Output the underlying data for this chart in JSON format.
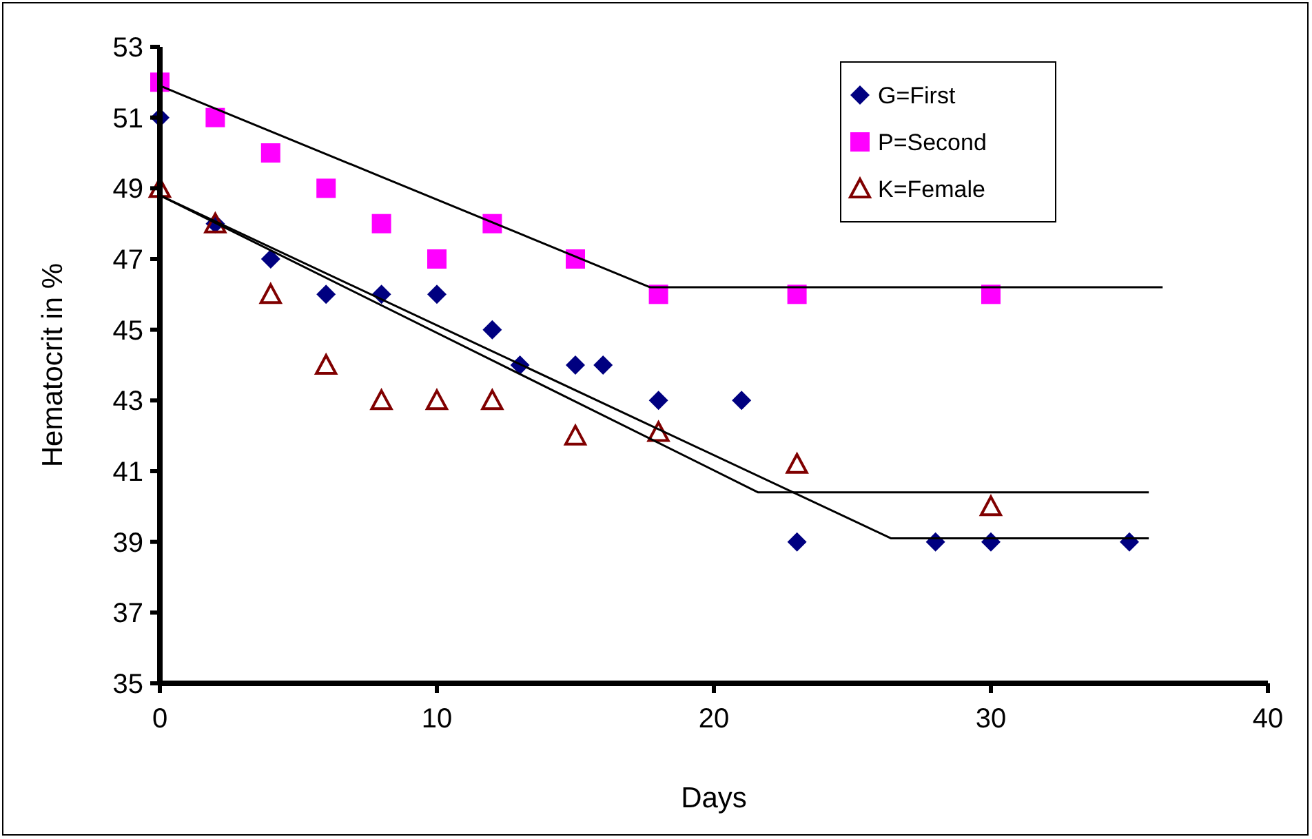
{
  "chart_data": {
    "type": "scatter",
    "xlabel": "Days",
    "ylabel": "Hematocrit in %",
    "xlim": [
      0,
      40
    ],
    "xticks": [
      0,
      10,
      20,
      30,
      40
    ],
    "ylim": [
      35,
      53
    ],
    "yticks": [
      35,
      37,
      39,
      41,
      43,
      45,
      47,
      49,
      51,
      53
    ],
    "grid": false,
    "legend": "top right",
    "series": [
      {
        "name": "G=First",
        "marker": "diamond",
        "color": "#000080",
        "x": [
          0,
          2,
          4,
          6,
          8,
          10,
          12,
          13,
          15,
          16,
          18,
          21,
          23,
          28,
          30,
          35
        ],
        "values": [
          51,
          48,
          47,
          46,
          46,
          46,
          45,
          44,
          44,
          44,
          43,
          43,
          39,
          39,
          39,
          39
        ]
      },
      {
        "name": "P=Second",
        "marker": "square",
        "color": "#ff00ff",
        "x": [
          0,
          2,
          4,
          6,
          8,
          10,
          12,
          15,
          18,
          23,
          30
        ],
        "values": [
          52,
          51,
          50,
          49,
          48,
          47,
          48,
          47,
          46,
          46,
          46
        ]
      },
      {
        "name": "K=Female",
        "marker": "triangle",
        "color": "#800000",
        "x": [
          0,
          2,
          4,
          6,
          8,
          10,
          12,
          15,
          18,
          23,
          30
        ],
        "values": [
          49,
          48,
          46,
          44,
          43,
          43,
          43,
          42,
          42.1,
          41.2,
          40
        ]
      },
      {
        "type": "line",
        "marker": "none",
        "line_style": "solid",
        "color": "#000000",
        "x": [
          0,
          17.7,
          36.2
        ],
        "values": [
          51.9,
          46.2,
          46.2
        ]
      },
      {
        "type": "line",
        "marker": "none",
        "line_style": "solid",
        "color": "#000000",
        "x": [
          0,
          21.6,
          35.7
        ],
        "values": [
          48.8,
          40.4,
          40.4
        ]
      },
      {
        "type": "line",
        "marker": "none",
        "line_style": "solid",
        "color": "#000000",
        "x": [
          0,
          26.4,
          35.7
        ],
        "values": [
          48.8,
          39.1,
          39.1
        ]
      }
    ]
  }
}
